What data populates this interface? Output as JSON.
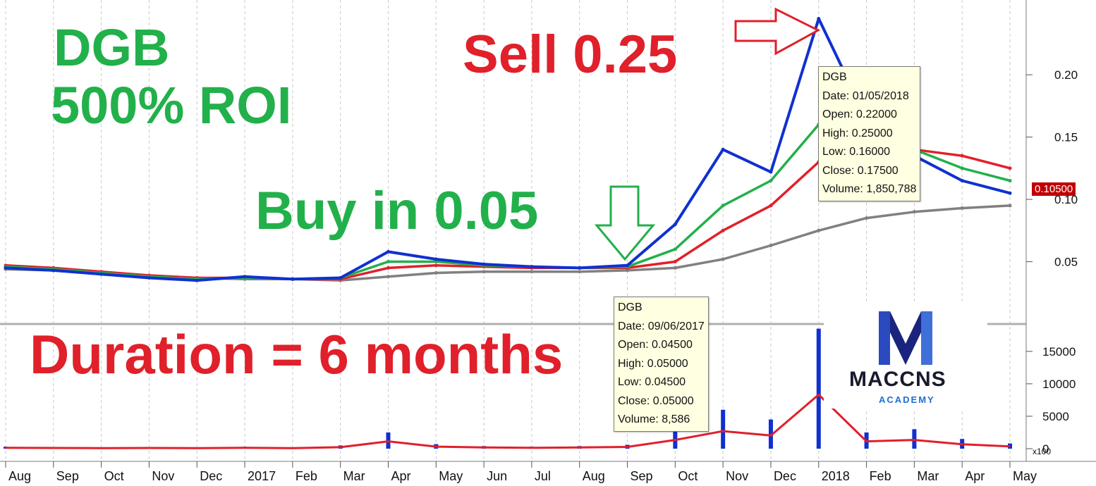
{
  "headline": {
    "line1": "DGB",
    "line2": "500% ROI"
  },
  "sell_label": "Sell 0.25",
  "buy_label": "Buy in 0.05",
  "duration_label": "Duration = 6 months",
  "sell_tooltip": {
    "symbol": "DGB",
    "date": "Date: 01/05/2018",
    "open": "Open: 0.22000",
    "high": "High: 0.25000",
    "low": "Low: 0.16000",
    "close": "Close: 0.17500",
    "volume": "Volume: 1,850,788"
  },
  "buy_tooltip": {
    "symbol": "DGB",
    "date": "Date: 09/06/2017",
    "open": "Open: 0.04500",
    "high": "High: 0.05000",
    "low": "Low: 0.04500",
    "close": "Close: 0.05000",
    "volume": "Volume: 8,586"
  },
  "last_price": "0.10500",
  "logo": {
    "word": "MACCNS",
    "sub": "ACADEMY"
  },
  "colors": {
    "green": "#22b04b",
    "red": "#e0202a",
    "blue": "#1030d0",
    "price_tag": "#c00000"
  },
  "chart_data": [
    {
      "type": "line",
      "panel": "price",
      "y_ticks": [
        "0.20",
        "0.15",
        "0.10",
        "0.05"
      ],
      "x_ticks": [
        "Aug",
        "Sep",
        "Oct",
        "Nov",
        "Dec",
        "2017",
        "Feb",
        "Mar",
        "Apr",
        "May",
        "Jun",
        "Jul",
        "Aug",
        "Sep",
        "Oct",
        "Nov",
        "Dec",
        "2018",
        "Feb",
        "Mar",
        "Apr",
        "May"
      ],
      "ylim": [
        0.0,
        0.26
      ],
      "grid": true,
      "series": [
        {
          "values": [
            0.045,
            0.043,
            0.04,
            0.037,
            0.035,
            0.038,
            0.036,
            0.037,
            0.058,
            0.052,
            0.048,
            0.046,
            0.045,
            0.047,
            0.08,
            0.14,
            0.122,
            0.245,
            0.165,
            0.135,
            0.115,
            0.105
          ],
          "color": "#1030d0"
        },
        {
          "values": [
            0.046,
            0.044,
            0.041,
            0.038,
            0.036,
            0.037,
            0.036,
            0.037,
            0.05,
            0.05,
            0.047,
            0.046,
            0.045,
            0.046,
            0.06,
            0.095,
            0.115,
            0.16,
            0.15,
            0.14,
            0.125,
            0.115
          ],
          "color": "#22b04b"
        },
        {
          "values": [
            0.047,
            0.045,
            0.042,
            0.039,
            0.037,
            0.037,
            0.036,
            0.036,
            0.045,
            0.047,
            0.046,
            0.045,
            0.045,
            0.045,
            0.05,
            0.075,
            0.095,
            0.13,
            0.14,
            0.14,
            0.135,
            0.125
          ],
          "color": "#e0202a"
        },
        {
          "values": [
            0.044,
            0.043,
            0.041,
            0.039,
            0.037,
            0.036,
            0.036,
            0.035,
            0.038,
            0.041,
            0.042,
            0.042,
            0.042,
            0.043,
            0.045,
            0.052,
            0.063,
            0.075,
            0.085,
            0.09,
            0.093,
            0.095
          ],
          "color": "#808080"
        }
      ]
    },
    {
      "type": "bar",
      "panel": "volume",
      "y_ticks": [
        "15000",
        "10000",
        "5000",
        "0"
      ],
      "multiplier_label": "x100",
      "ylim": [
        0,
        19000
      ],
      "categories": [
        "Aug",
        "Sep",
        "Oct",
        "Nov",
        "Dec",
        "2017",
        "Feb",
        "Mar",
        "Apr",
        "May",
        "Jun",
        "Jul",
        "Aug",
        "Sep",
        "Oct",
        "Nov",
        "Dec",
        "2018",
        "Feb",
        "Mar",
        "Apr",
        "May"
      ],
      "values": [
        300,
        250,
        200,
        250,
        200,
        300,
        200,
        500,
        2500,
        700,
        400,
        300,
        400,
        600,
        3000,
        6000,
        4500,
        18500,
        2500,
        3000,
        1500,
        800
      ]
    }
  ]
}
